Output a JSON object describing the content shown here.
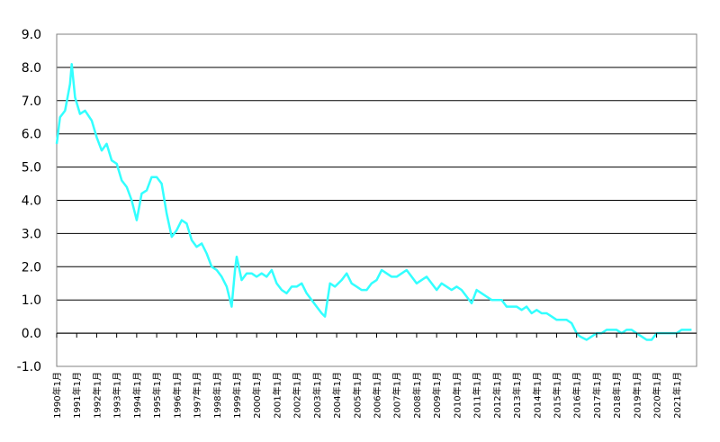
{
  "chart_data": {
    "type": "line",
    "title": "",
    "xlabel": "",
    "ylabel": "",
    "ylim": [
      -1.0,
      9.0
    ],
    "yticks": [
      "9.0",
      "8.0",
      "7.0",
      "6.0",
      "5.0",
      "4.0",
      "3.0",
      "2.0",
      "1.0",
      "0.0",
      "-1.0"
    ],
    "xticks": [
      "1990年1月",
      "1991年1月",
      "1992年1月",
      "1993年1月",
      "1994年1月",
      "1995年1月",
      "1996年1月",
      "1997年1月",
      "1998年1月",
      "1999年1月",
      "2000年1月",
      "2001年1月",
      "2002年1月",
      "2003年1月",
      "2004年1月",
      "2005年1月",
      "2006年1月",
      "2007年1月",
      "2008年1月",
      "2009年1月",
      "2010年1月",
      "2011年1月",
      "2012年1月",
      "2013年1月",
      "2014年1月",
      "2015年1月",
      "2016年1月",
      "2017年1月",
      "2018年1月",
      "2019年1月",
      "2020年1月",
      "2021年1月"
    ],
    "grid": true,
    "series": [
      {
        "color": "#33ffff",
        "x": [
          "1990-01",
          "1990-03",
          "1990-06",
          "1990-09",
          "1990-10",
          "1990-12",
          "1991-03",
          "1991-06",
          "1991-10",
          "1992-01",
          "1992-04",
          "1992-07",
          "1992-10",
          "1993-01",
          "1993-04",
          "1993-07",
          "1993-10",
          "1994-01",
          "1994-04",
          "1994-07",
          "1994-10",
          "1995-01",
          "1995-04",
          "1995-07",
          "1995-10",
          "1996-01",
          "1996-04",
          "1996-07",
          "1996-10",
          "1997-01",
          "1997-04",
          "1997-07",
          "1997-10",
          "1998-01",
          "1998-04",
          "1998-07",
          "1998-10",
          "1998-12",
          "1999-01",
          "1999-04",
          "1999-07",
          "1999-10",
          "2000-01",
          "2000-04",
          "2000-07",
          "2000-10",
          "2001-01",
          "2001-04",
          "2001-07",
          "2001-10",
          "2002-01",
          "2002-04",
          "2002-07",
          "2002-10",
          "2003-01",
          "2003-04",
          "2003-06",
          "2003-09",
          "2003-12",
          "2004-04",
          "2004-07",
          "2004-10",
          "2005-01",
          "2005-04",
          "2005-07",
          "2005-10",
          "2006-01",
          "2006-04",
          "2006-07",
          "2006-10",
          "2007-01",
          "2007-04",
          "2007-07",
          "2007-10",
          "2008-01",
          "2008-04",
          "2008-07",
          "2008-10",
          "2009-01",
          "2009-04",
          "2009-07",
          "2009-10",
          "2010-01",
          "2010-04",
          "2010-07",
          "2010-10",
          "2011-01",
          "2011-04",
          "2011-07",
          "2011-10",
          "2012-01",
          "2012-04",
          "2012-07",
          "2012-10",
          "2013-01",
          "2013-04",
          "2013-07",
          "2013-10",
          "2014-01",
          "2014-04",
          "2014-07",
          "2014-10",
          "2015-01",
          "2015-04",
          "2015-07",
          "2015-10",
          "2016-01",
          "2016-03",
          "2016-07",
          "2016-10",
          "2017-01",
          "2017-04",
          "2017-07",
          "2017-10",
          "2018-01",
          "2018-04",
          "2018-07",
          "2018-10",
          "2019-01",
          "2019-04",
          "2019-07",
          "2019-10",
          "2020-01",
          "2020-04",
          "2020-07",
          "2020-10",
          "2021-01",
          "2021-04",
          "2021-07",
          "2021-10"
        ],
        "values": [
          5.7,
          6.5,
          6.7,
          7.5,
          8.1,
          7.1,
          6.6,
          6.7,
          6.4,
          5.9,
          5.5,
          5.7,
          5.2,
          5.1,
          4.6,
          4.4,
          4.0,
          3.4,
          4.2,
          4.3,
          4.7,
          4.7,
          4.5,
          3.6,
          2.9,
          3.1,
          3.4,
          3.3,
          2.8,
          2.6,
          2.7,
          2.4,
          2.0,
          1.9,
          1.7,
          1.4,
          0.8,
          1.9,
          2.3,
          1.6,
          1.8,
          1.8,
          1.7,
          1.8,
          1.7,
          1.9,
          1.5,
          1.3,
          1.2,
          1.4,
          1.4,
          1.5,
          1.2,
          1.0,
          0.8,
          0.6,
          0.5,
          1.5,
          1.4,
          1.6,
          1.8,
          1.5,
          1.4,
          1.3,
          1.3,
          1.5,
          1.6,
          1.9,
          1.8,
          1.7,
          1.7,
          1.8,
          1.9,
          1.7,
          1.5,
          1.6,
          1.7,
          1.5,
          1.3,
          1.5,
          1.4,
          1.3,
          1.4,
          1.3,
          1.1,
          0.9,
          1.3,
          1.2,
          1.1,
          1.0,
          1.0,
          1.0,
          0.8,
          0.8,
          0.8,
          0.7,
          0.8,
          0.6,
          0.7,
          0.6,
          0.6,
          0.5,
          0.4,
          0.4,
          0.4,
          0.3,
          0.0,
          -0.1,
          -0.2,
          -0.1,
          0.0,
          0.0,
          0.1,
          0.1,
          0.1,
          0.0,
          0.1,
          0.1,
          0.0,
          -0.1,
          -0.2,
          -0.2,
          0.0,
          0.0,
          0.0,
          0.0,
          0.0,
          0.1,
          0.1,
          0.1
        ]
      }
    ]
  }
}
